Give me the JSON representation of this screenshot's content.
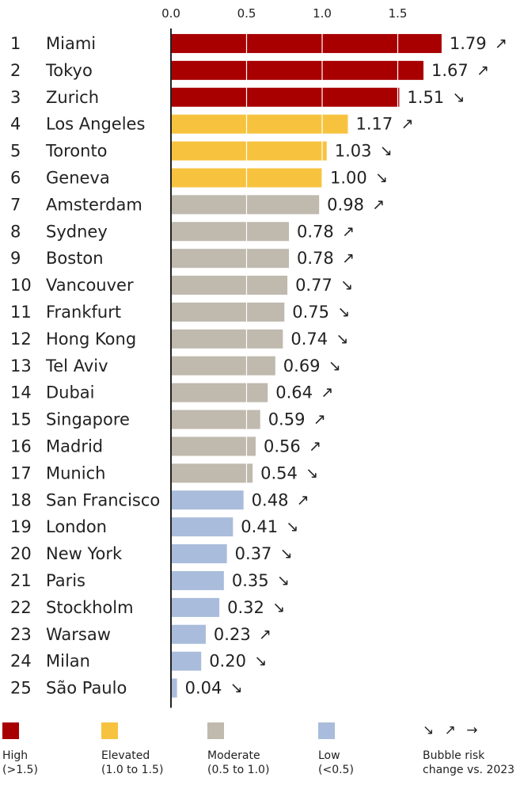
{
  "chart_data": {
    "type": "bar",
    "orientation": "horizontal",
    "xlim": [
      0,
      1.8
    ],
    "xticks": [
      "0.0",
      "0.5",
      "1.0",
      "1.5"
    ],
    "grid": true,
    "rows": [
      {
        "rank": "1",
        "city": "Miami",
        "value": 1.79,
        "label": "1.79",
        "trend": "↗",
        "category": "high"
      },
      {
        "rank": "2",
        "city": "Tokyo",
        "value": 1.67,
        "label": "1.67",
        "trend": "↗",
        "category": "high"
      },
      {
        "rank": "3",
        "city": "Zurich",
        "value": 1.51,
        "label": "1.51",
        "trend": "↘",
        "category": "high"
      },
      {
        "rank": "4",
        "city": "Los Angeles",
        "value": 1.17,
        "label": "1.17",
        "trend": "↗",
        "category": "elevated"
      },
      {
        "rank": "5",
        "city": "Toronto",
        "value": 1.03,
        "label": "1.03",
        "trend": "↘",
        "category": "elevated"
      },
      {
        "rank": "6",
        "city": "Geneva",
        "value": 1.0,
        "label": "1.00",
        "trend": "↘",
        "category": "elevated"
      },
      {
        "rank": "7",
        "city": "Amsterdam",
        "value": 0.98,
        "label": "0.98",
        "trend": "↗",
        "category": "moderate"
      },
      {
        "rank": "8",
        "city": "Sydney",
        "value": 0.78,
        "label": "0.78",
        "trend": "↗",
        "category": "moderate"
      },
      {
        "rank": "9",
        "city": "Boston",
        "value": 0.78,
        "label": "0.78",
        "trend": "↗",
        "category": "moderate"
      },
      {
        "rank": "10",
        "city": "Vancouver",
        "value": 0.77,
        "label": "0.77",
        "trend": "↘",
        "category": "moderate"
      },
      {
        "rank": "11",
        "city": "Frankfurt",
        "value": 0.75,
        "label": "0.75",
        "trend": "↘",
        "category": "moderate"
      },
      {
        "rank": "12",
        "city": "Hong Kong",
        "value": 0.74,
        "label": "0.74",
        "trend": "↘",
        "category": "moderate"
      },
      {
        "rank": "13",
        "city": "Tel Aviv",
        "value": 0.69,
        "label": "0.69",
        "trend": "↘",
        "category": "moderate"
      },
      {
        "rank": "14",
        "city": "Dubai",
        "value": 0.64,
        "label": "0.64",
        "trend": "↗",
        "category": "moderate"
      },
      {
        "rank": "15",
        "city": "Singapore",
        "value": 0.59,
        "label": "0.59",
        "trend": "↗",
        "category": "moderate"
      },
      {
        "rank": "16",
        "city": "Madrid",
        "value": 0.56,
        "label": "0.56",
        "trend": "↗",
        "category": "moderate"
      },
      {
        "rank": "17",
        "city": "Munich",
        "value": 0.54,
        "label": "0.54",
        "trend": "↘",
        "category": "moderate"
      },
      {
        "rank": "18",
        "city": "San Francisco",
        "value": 0.48,
        "label": "0.48",
        "trend": "↗",
        "category": "low"
      },
      {
        "rank": "19",
        "city": "London",
        "value": 0.41,
        "label": "0.41",
        "trend": "↘",
        "category": "low"
      },
      {
        "rank": "20",
        "city": "New York",
        "value": 0.37,
        "label": "0.37",
        "trend": "↘",
        "category": "low"
      },
      {
        "rank": "21",
        "city": "Paris",
        "value": 0.35,
        "label": "0.35",
        "trend": "↘",
        "category": "low"
      },
      {
        "rank": "22",
        "city": "Stockholm",
        "value": 0.32,
        "label": "0.32",
        "trend": "↘",
        "category": "low"
      },
      {
        "rank": "23",
        "city": "Warsaw",
        "value": 0.23,
        "label": "0.23",
        "trend": "↗",
        "category": "low"
      },
      {
        "rank": "24",
        "city": "Milan",
        "value": 0.2,
        "label": "0.20",
        "trend": "↘",
        "category": "low"
      },
      {
        "rank": "25",
        "city": "São Paulo",
        "value": 0.04,
        "label": "0.04",
        "trend": "↘",
        "category": "low"
      }
    ]
  },
  "colors": {
    "high": "#a80000",
    "elevated": "#f7c33f",
    "moderate": "#bfb9ae",
    "low": "#a9bcdb"
  },
  "legend": {
    "high": {
      "line1": "High",
      "line2": "(>1.5)"
    },
    "elevated": {
      "line1": "Elevated",
      "line2": "(1.0 to 1.5)"
    },
    "moderate": {
      "line1": "Moderate",
      "line2": "(0.5 to 1.0)"
    },
    "low": {
      "line1": "Low",
      "line2": "(<0.5)"
    },
    "trend": {
      "arrows": "↘ ↗ →",
      "line1": "Bubble risk",
      "line2": "change vs. 2023"
    }
  }
}
